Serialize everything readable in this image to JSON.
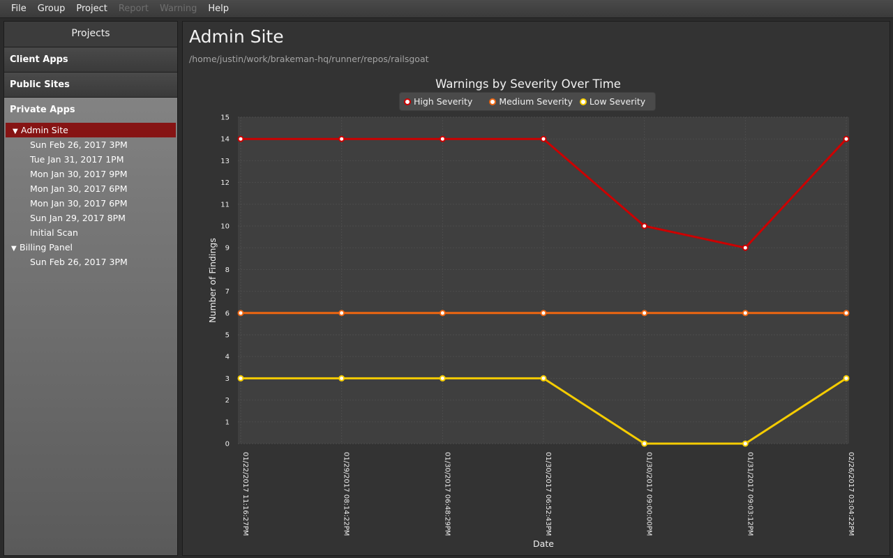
{
  "menu": {
    "items": [
      {
        "label": "File",
        "enabled": true
      },
      {
        "label": "Group",
        "enabled": true
      },
      {
        "label": "Project",
        "enabled": true
      },
      {
        "label": "Report",
        "enabled": false
      },
      {
        "label": "Warning",
        "enabled": false
      },
      {
        "label": "Help",
        "enabled": true
      }
    ]
  },
  "sidebar": {
    "title": "Projects",
    "groups": [
      {
        "label": "Client Apps"
      },
      {
        "label": "Public Sites"
      },
      {
        "label": "Private Apps"
      }
    ],
    "tree": [
      {
        "label": "Admin Site",
        "type": "project",
        "selected": true,
        "expanded": true,
        "arrow": "▼"
      },
      {
        "label": "Sun Feb 26, 2017  3PM",
        "type": "scan"
      },
      {
        "label": "Tue Jan 31, 2017  1PM",
        "type": "scan"
      },
      {
        "label": "Mon Jan 30, 2017  9PM",
        "type": "scan"
      },
      {
        "label": "Mon Jan 30, 2017  6PM",
        "type": "scan"
      },
      {
        "label": "Mon Jan 30, 2017  6PM",
        "type": "scan"
      },
      {
        "label": "Sun Jan 29, 2017  8PM",
        "type": "scan"
      },
      {
        "label": "Initial Scan",
        "type": "scan"
      },
      {
        "label": "Billing Panel",
        "type": "project",
        "selected": false,
        "expanded": true,
        "arrow": "▼"
      },
      {
        "label": "Sun Feb 26, 2017  3PM",
        "type": "scan"
      }
    ]
  },
  "main": {
    "title": "Admin Site",
    "path": "/home/justin/work/brakeman-hq/runner/repos/railsgoat"
  },
  "colors": {
    "high": "#cc0000",
    "medium": "#ee6611",
    "low": "#f5cc00",
    "plot_bg": "#3f3f3f"
  },
  "chart_data": {
    "type": "line",
    "title": "Warnings by Severity Over Time",
    "xlabel": "Date",
    "ylabel": "Number of Findings",
    "ylim": [
      0,
      15
    ],
    "yticks": [
      0,
      1,
      2,
      3,
      4,
      5,
      6,
      7,
      8,
      9,
      10,
      11,
      12,
      13,
      14,
      15
    ],
    "grid": true,
    "legend_position": "top",
    "categories": [
      "01/22/2017 11:16:27PM",
      "01/29/2017 08:14:22PM",
      "01/30/2017 06:48:29PM",
      "01/30/2017 06:52:43PM",
      "01/30/2017 09:00:00PM",
      "01/31/2017 09:03:12PM",
      "02/26/2017 03:04:22PM"
    ],
    "series": [
      {
        "name": "High Severity",
        "color_key": "high",
        "values": [
          14,
          14,
          14,
          14,
          10,
          9,
          14
        ]
      },
      {
        "name": "Medium Severity",
        "color_key": "medium",
        "values": [
          6,
          6,
          6,
          6,
          6,
          6,
          6
        ]
      },
      {
        "name": "Low Severity",
        "color_key": "low",
        "values": [
          3,
          3,
          3,
          3,
          0,
          0,
          3
        ]
      }
    ]
  }
}
